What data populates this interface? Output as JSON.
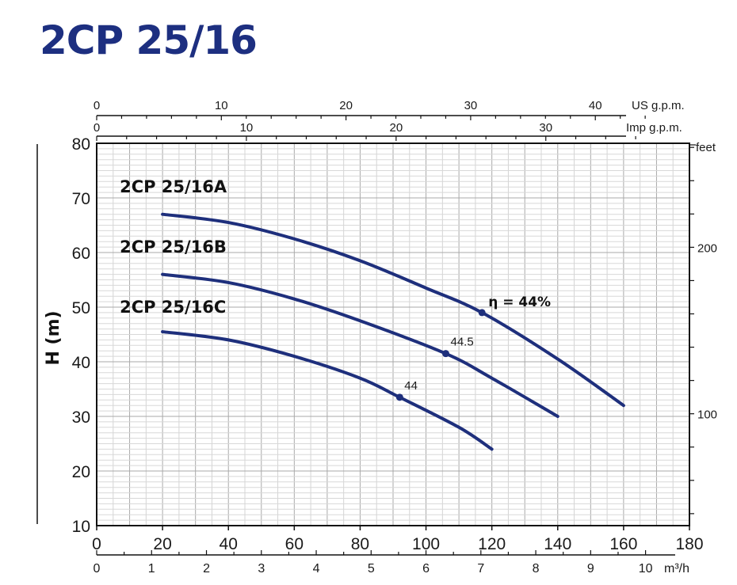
{
  "title": "2CP 25/16",
  "chart_data": {
    "type": "line",
    "title": "2CP 25/16",
    "xlabel": "",
    "ylabel": "H (m)",
    "xlim": [
      0,
      180
    ],
    "ylim": [
      10,
      80
    ],
    "x_ticks": [
      0,
      20,
      40,
      60,
      80,
      100,
      120,
      140,
      160,
      180
    ],
    "y_ticks": [
      10,
      20,
      30,
      40,
      50,
      60,
      70,
      80
    ],
    "grid": true,
    "top_axes": [
      {
        "unit_label": "US g.p.m.",
        "ticks": [
          0,
          10,
          20,
          30,
          40
        ]
      },
      {
        "unit_label": "Imp g.p.m.",
        "ticks": [
          0,
          10,
          20,
          30
        ]
      }
    ],
    "bottom_axis_2": {
      "unit_label": "m³/h",
      "ticks": [
        0,
        1,
        2,
        3,
        4,
        5,
        6,
        7,
        8,
        9,
        10
      ]
    },
    "right_axis": {
      "unit_label": "feet",
      "ticks": [
        100,
        200
      ]
    },
    "series": [
      {
        "name": "2CP 25/16A",
        "x": [
          20,
          40,
          60,
          80,
          100,
          117,
          140,
          160
        ],
        "y": [
          67,
          65.5,
          62.5,
          58.5,
          53.5,
          49,
          40.5,
          32
        ],
        "efficiency_point": {
          "x": 117,
          "y": 49,
          "label": "η = 44%"
        }
      },
      {
        "name": "2CP 25/16B",
        "x": [
          20,
          40,
          60,
          80,
          106,
          120,
          140
        ],
        "y": [
          56,
          54.5,
          51.5,
          47.5,
          41.5,
          37,
          30
        ],
        "efficiency_point": {
          "x": 106,
          "y": 41.5,
          "label": "44.5"
        }
      },
      {
        "name": "2CP 25/16C",
        "x": [
          20,
          40,
          60,
          80,
          92,
          110,
          120
        ],
        "y": [
          45.5,
          44,
          41,
          37,
          33.5,
          28,
          24
        ],
        "efficiency_point": {
          "x": 92,
          "y": 33.5,
          "label": "44"
        }
      }
    ],
    "series_label_positions": [
      {
        "x": 7,
        "y": 71
      },
      {
        "x": 7,
        "y": 60
      },
      {
        "x": 7,
        "y": 49
      }
    ]
  }
}
